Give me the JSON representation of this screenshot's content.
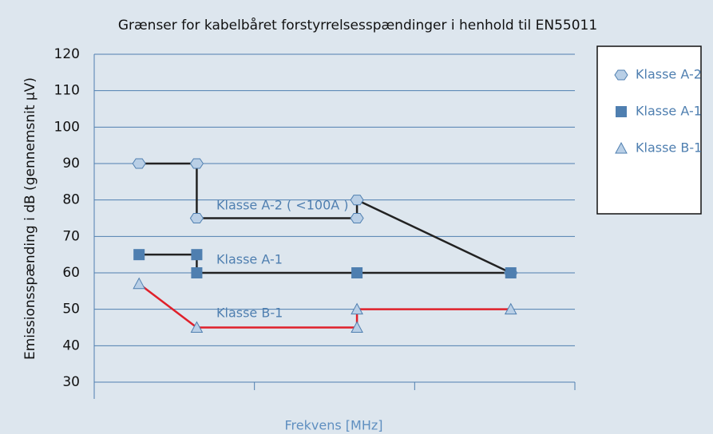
{
  "chart_data": {
    "type": "line",
    "title": "Grænser for kabelbåret forstyrrelsesspændinger i henhold til EN55011",
    "y_label": "Emissionsspænding i dB (gennemsnit µV)",
    "x_label": "Frekvens [MHz]",
    "xlim": [
      0,
      3
    ],
    "xticks": [
      0,
      1,
      2,
      3
    ],
    "ylim": [
      30,
      120
    ],
    "yticks": [
      30,
      40,
      50,
      60,
      70,
      80,
      90,
      100,
      110,
      120
    ],
    "grid": true,
    "legend": "right",
    "series": [
      {
        "name": "Klasse A-2",
        "marker": "hexagon",
        "color": "#b9cfe6",
        "line_color": "#222222",
        "x": [
          0.28,
          0.64,
          0.64,
          1.64,
          1.64,
          2.6
        ],
        "values": [
          90,
          90,
          75,
          75,
          80,
          60
        ]
      },
      {
        "name": "Klasse A-1",
        "marker": "square",
        "color": "#4f7fb0",
        "line_color": "#222222",
        "x": [
          0.28,
          0.64,
          0.64,
          1.64,
          2.6
        ],
        "values": [
          65,
          65,
          60,
          60,
          60
        ]
      },
      {
        "name": "Klasse B-1",
        "marker": "triangle",
        "color": "#b9cfe6",
        "line_color": "#e0202a",
        "x": [
          0.28,
          0.64,
          1.64,
          1.64,
          2.6
        ],
        "values": [
          57,
          45,
          45,
          50,
          50
        ]
      }
    ],
    "annotations": [
      "Klasse A-2  ( <100A )",
      "Klasse A-1",
      "Klasse B-1"
    ]
  }
}
